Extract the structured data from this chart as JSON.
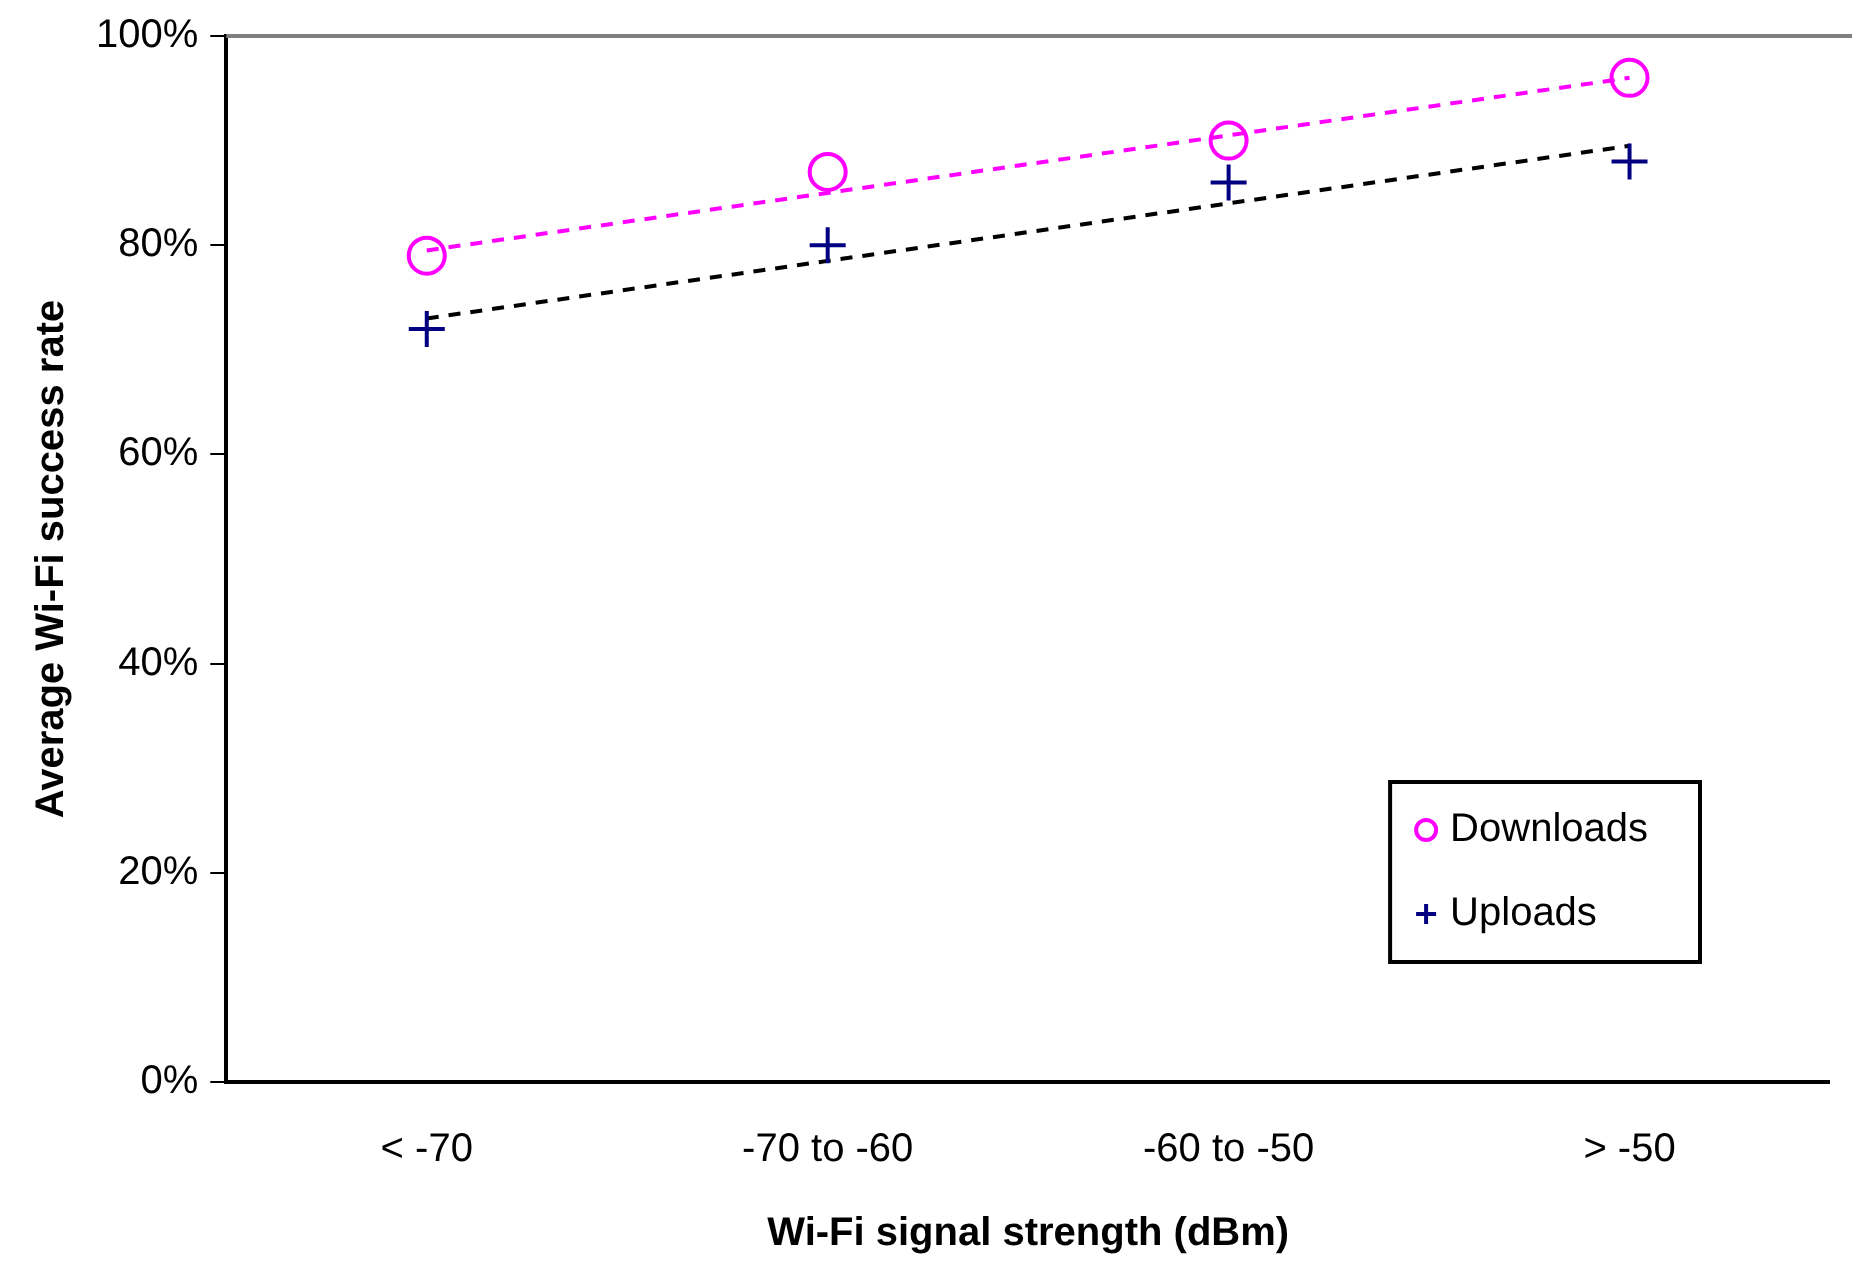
{
  "chart_data": {
    "type": "scatter",
    "xlabel": "Wi-Fi signal strength (dBm)",
    "ylabel": "Average Wi-Fi success rate",
    "categories": [
      "< -70",
      "-70 to -60",
      "-60 to -50",
      "> -50"
    ],
    "series": [
      {
        "name": "Downloads",
        "color": "#ff00ff",
        "marker": "circle",
        "values": [
          79,
          87,
          90,
          96
        ]
      },
      {
        "name": "Uploads",
        "color": "#000080",
        "marker": "cross",
        "values": [
          72,
          80,
          86,
          88
        ]
      },
      {
        "type": "line",
        "color": "#ff00ff",
        "line_style": "dashed",
        "marker": "none",
        "x": [
          "< -70",
          "-70 to -60",
          "-60 to -50",
          "> -50"
        ],
        "values": [
          79.5,
          85,
          90.5,
          96
        ]
      },
      {
        "type": "line",
        "color": "#000000",
        "line_style": "dashed",
        "marker": "none",
        "x": [
          "< -70",
          "-70 to -60",
          "-60 to -50",
          "> -50"
        ],
        "values": [
          73,
          78.5,
          84,
          89.5
        ]
      }
    ],
    "ylim": [
      0,
      100
    ],
    "yticks": [
      {
        "value": 0,
        "label": "0%"
      },
      {
        "value": 20,
        "label": "20%"
      },
      {
        "value": 40,
        "label": "40%"
      },
      {
        "value": 60,
        "label": "60%"
      },
      {
        "value": 80,
        "label": "80%"
      },
      {
        "value": 100,
        "label": "100%"
      }
    ],
    "ref_lines": [
      {
        "axis": "y",
        "value": 100,
        "color": "#808080"
      }
    ],
    "grid": false,
    "legend": "bottom right"
  }
}
